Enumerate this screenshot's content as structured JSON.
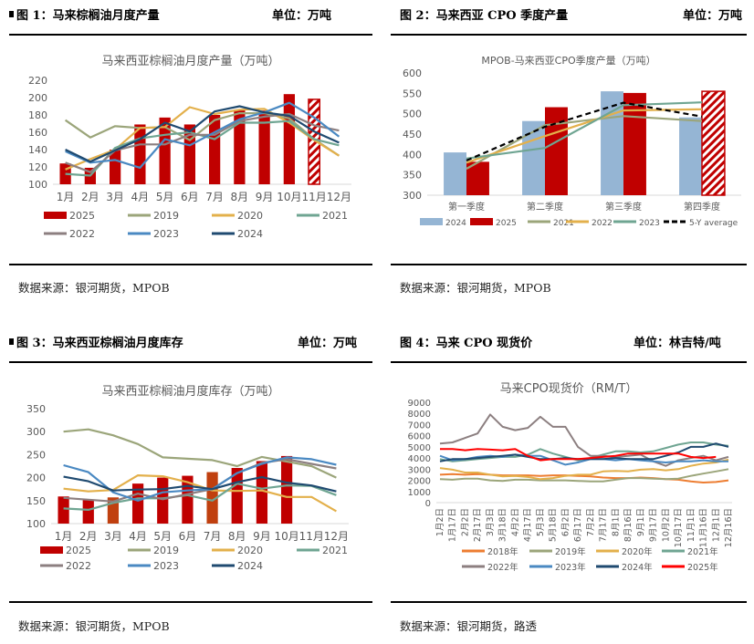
{
  "panels": [
    {
      "caption": "图 1：马来棕榈油月度产量",
      "unit": "单位：万吨",
      "source": "数据来源：银河期货，MPOB"
    },
    {
      "caption": "图 2：马来西亚 CPO 季度产量",
      "unit": "单位：万吨",
      "source": "数据来源：银河期货，MPOB"
    },
    {
      "caption": "图 3：马来西亚棕榈油月度库存",
      "unit": "单位：万吨",
      "source": "数据来源：银河期货，MPOB"
    },
    {
      "caption": "图 4：马来 CPO 现货价",
      "unit": "单位：林吉特/吨",
      "source": "数据来源：银河期货，路透"
    }
  ],
  "chart_data": [
    {
      "type": "bar",
      "title": "马来西亚棕榈油月度产量（万吨）",
      "ylim": [
        100,
        220
      ],
      "yticks": [
        "100",
        "120",
        "140",
        "160",
        "180",
        "200",
        "220"
      ],
      "categories": [
        "1月",
        "2月",
        "3月",
        "4月",
        "5月",
        "6月",
        "7月",
        "8月",
        "9月",
        "10月",
        "11月",
        "12月"
      ],
      "series": [
        {
          "name": "2025",
          "kind": "bar",
          "color": "#C00000",
          "values": [
            124,
            119,
            140,
            169,
            177,
            169,
            180,
            186,
            185,
            204,
            198,
            null
          ],
          "hatched": [
            false,
            false,
            false,
            false,
            false,
            false,
            false,
            false,
            false,
            false,
            true,
            false
          ]
        },
        {
          "name": "2019",
          "kind": "line",
          "color": "#9BA57A",
          "values": [
            174,
            154,
            167,
            165,
            166,
            151,
            174,
            182,
            182,
            176,
            152,
            133
          ]
        },
        {
          "name": "2020",
          "kind": "line",
          "color": "#E3B04B",
          "values": [
            117,
            129,
            140,
            165,
            166,
            189,
            181,
            186,
            187,
            171,
            151,
            133
          ]
        },
        {
          "name": "2021",
          "kind": "line",
          "color": "#6FA592",
          "values": [
            112,
            110,
            142,
            153,
            157,
            160,
            152,
            171,
            171,
            173,
            152,
            145
          ]
        },
        {
          "name": "2022",
          "kind": "line",
          "color": "#8C7F80",
          "values": [
            125,
            114,
            139,
            146,
            146,
            157,
            157,
            173,
            178,
            181,
            168,
            162
          ]
        },
        {
          "name": "2023",
          "kind": "line",
          "color": "#4A89C2",
          "values": [
            138,
            125,
            128,
            119,
            152,
            145,
            160,
            175,
            183,
            194,
            177,
            155
          ]
        },
        {
          "name": "2024",
          "kind": "line",
          "color": "#1F4A70",
          "values": [
            140,
            126,
            139,
            152,
            171,
            161,
            184,
            190,
            183,
            179,
            161,
            148
          ]
        }
      ],
      "legend": "bottom"
    },
    {
      "type": "bar",
      "title": "MPOB-马来西亚CPO季度产量（万吨）",
      "ylim": [
        300,
        600
      ],
      "yticks": [
        "300",
        "350",
        "400",
        "450",
        "500",
        "550",
        "600"
      ],
      "categories": [
        "第一季度",
        "第二季度",
        "第三季度",
        "第四季度"
      ],
      "series": [
        {
          "name": "2024",
          "kind": "bar",
          "color": "#95B5D4",
          "values": [
            405,
            482,
            555,
            491
          ]
        },
        {
          "name": "2025",
          "kind": "bar",
          "color": "#C00000",
          "values": [
            382,
            516,
            551,
            555
          ],
          "hatched": [
            false,
            false,
            false,
            true
          ]
        },
        {
          "name": "2021",
          "kind": "line",
          "color": "#9BA57A",
          "values": [
            365,
            472,
            494,
            482
          ]
        },
        {
          "name": "2022",
          "kind": "line",
          "color": "#E3B04B",
          "values": [
            380,
            445,
            508,
            511
          ]
        },
        {
          "name": "2023",
          "kind": "line",
          "color": "#6FA592",
          "values": [
            390,
            416,
            521,
            528
          ]
        },
        {
          "name": "5-Y average",
          "kind": "dash",
          "color": "#000000",
          "values": [
            385,
            468,
            527,
            493
          ]
        }
      ],
      "legend": "bottom"
    },
    {
      "type": "bar",
      "title": "马来西亚棕榈油月度库存（万吨）",
      "ylim": [
        100,
        350
      ],
      "yticks": [
        "100",
        "150",
        "200",
        "250",
        "300",
        "350"
      ],
      "categories": [
        "1月",
        "2月",
        "3月",
        "4月",
        "5月",
        "6月",
        "7月",
        "8月",
        "9月",
        "10月",
        "11月",
        "12月"
      ],
      "series": [
        {
          "name": "2025",
          "kind": "bar",
          "color": "#C00000",
          "values": [
            159,
            151,
            157,
            187,
            200,
            204,
            212,
            221,
            236,
            247,
            null,
            null
          ],
          "bar_colors": [
            "#C00000",
            "#C00000",
            "#C0400F",
            "#C00000",
            "#C00000",
            "#C00000",
            "#C0400F",
            "#C00000",
            "#C00000",
            "#C00000",
            "#C00000",
            "#C00000"
          ]
        },
        {
          "name": "2019",
          "kind": "line",
          "color": "#9BA57A",
          "values": [
            300,
            305,
            292,
            273,
            244,
            241,
            238,
            225,
            245,
            235,
            225,
            200
          ]
        },
        {
          "name": "2020",
          "kind": "line",
          "color": "#E3B04B",
          "values": [
            176,
            170,
            173,
            205,
            203,
            190,
            172,
            171,
            172,
            158,
            158,
            127
          ]
        },
        {
          "name": "2021",
          "kind": "line",
          "color": "#6FA592",
          "values": [
            133,
            130,
            145,
            155,
            155,
            162,
            150,
            187,
            176,
            183,
            182,
            162
          ]
        },
        {
          "name": "2022",
          "kind": "line",
          "color": "#8C7F80",
          "values": [
            156,
            152,
            148,
            165,
            153,
            164,
            175,
            210,
            232,
            240,
            230,
            220
          ]
        },
        {
          "name": "2023",
          "kind": "line",
          "color": "#4A89C2",
          "values": [
            227,
            212,
            168,
            150,
            168,
            172,
            175,
            210,
            230,
            244,
            240,
            228
          ]
        },
        {
          "name": "2024",
          "kind": "line",
          "color": "#1F4A70",
          "values": [
            202,
            192,
            172,
            174,
            175,
            182,
            175,
            190,
            201,
            189,
            183,
            170
          ]
        }
      ],
      "legend": "bottom"
    },
    {
      "type": "line",
      "title": "马来CPO现货价（RM/T）",
      "ylim": [
        0,
        9000
      ],
      "yticks": [
        "0",
        "1000",
        "2000",
        "3000",
        "4000",
        "5000",
        "6000",
        "7000",
        "8000",
        "9000"
      ],
      "categories": [
        "1月2日",
        "1月17日",
        "2月2日",
        "2月17日",
        "3月3日",
        "3月18日",
        "4月2日",
        "4月17日",
        "5月3日",
        "5月18日",
        "6月2日",
        "6月17日",
        "7月2日",
        "7月17日",
        "8月1日",
        "8月16日",
        "9月1日",
        "9月17日",
        "10月2日",
        "10月17日",
        "11月1日",
        "11月16日",
        "12月1日",
        "12月16日"
      ],
      "series": [
        {
          "name": "2018年",
          "kind": "line",
          "color": "#ED7D31",
          "values": [
            2500,
            2550,
            2500,
            2550,
            2500,
            2450,
            2450,
            2450,
            2400,
            2450,
            2450,
            2400,
            2350,
            2250,
            2200,
            2200,
            2250,
            2200,
            2100,
            2050,
            1900,
            1800,
            1850,
            2000
          ]
        },
        {
          "name": "2019年",
          "kind": "line",
          "color": "#9BA57A",
          "values": [
            2100,
            2050,
            2150,
            2150,
            2000,
            1950,
            2050,
            2050,
            2000,
            2000,
            2000,
            1950,
            1900,
            1900,
            2050,
            2200,
            2200,
            2150,
            2100,
            2150,
            2400,
            2600,
            2800,
            3000
          ]
        },
        {
          "name": "2020年",
          "kind": "line",
          "color": "#E3B04B",
          "values": [
            3100,
            2950,
            2700,
            2700,
            2500,
            2350,
            2400,
            2300,
            2100,
            2200,
            2400,
            2500,
            2500,
            2800,
            2850,
            2800,
            2950,
            3000,
            2900,
            3000,
            3300,
            3500,
            3600,
            3850
          ]
        },
        {
          "name": "2021年",
          "kind": "line",
          "color": "#6FA592",
          "values": [
            3900,
            3700,
            3800,
            3900,
            4000,
            4100,
            4100,
            4300,
            4800,
            4400,
            4100,
            3800,
            4000,
            4300,
            4600,
            4600,
            4500,
            4600,
            4900,
            5200,
            5400,
            5400,
            5200,
            5100
          ]
        },
        {
          "name": "2022年",
          "kind": "line",
          "color": "#8C7F80",
          "values": [
            5300,
            5400,
            5800,
            6200,
            7900,
            6800,
            6500,
            6700,
            7700,
            6800,
            6800,
            5000,
            4200,
            4200,
            4100,
            4200,
            4300,
            3700,
            3300,
            3800,
            4000,
            4200,
            3800,
            4100
          ]
        },
        {
          "name": "2023年",
          "kind": "line",
          "color": "#4A89C2",
          "values": [
            4200,
            3800,
            3900,
            4100,
            4200,
            4100,
            4300,
            4200,
            4200,
            3800,
            3400,
            3600,
            3900,
            3900,
            3800,
            3900,
            3800,
            3700,
            3600,
            3700,
            3700,
            3800,
            3700,
            3700
          ]
        },
        {
          "name": "2024年",
          "kind": "line",
          "color": "#1F4A70",
          "values": [
            3700,
            3900,
            3900,
            4000,
            4100,
            4200,
            4300,
            4100,
            3900,
            3900,
            4000,
            3900,
            3900,
            3900,
            4000,
            3900,
            3900,
            3900,
            4200,
            4500,
            5000,
            5000,
            5300,
            5000
          ]
        },
        {
          "name": "2025年",
          "kind": "line",
          "color": "#FF0000",
          "values": [
            4800,
            4800,
            4700,
            4800,
            4750,
            4700,
            4800,
            4200,
            3800,
            3900,
            3900,
            3900,
            4000,
            4100,
            4200,
            4400,
            4400,
            4400,
            4400,
            4400,
            4100,
            4000,
            4100,
            null
          ]
        }
      ],
      "legend": "bottom"
    }
  ]
}
